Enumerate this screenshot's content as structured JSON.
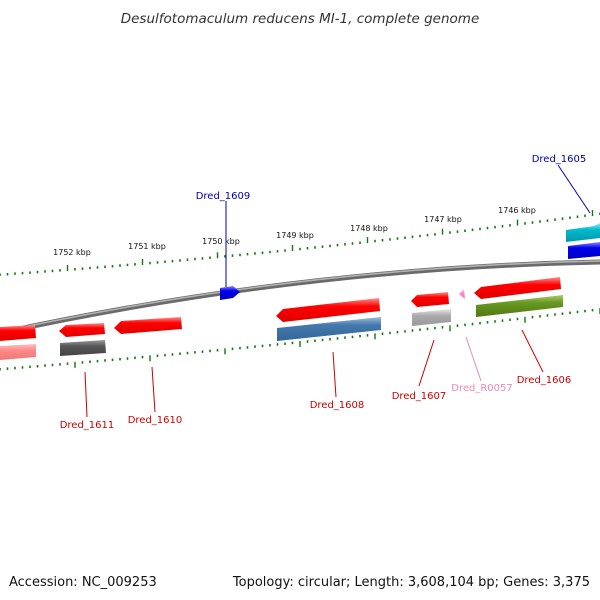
{
  "title": "Desulfotomaculum reducens MI-1, complete genome",
  "footer": {
    "accession": "Accession: NC_009253",
    "summary": "Topology: circular; Length: 3,608,104 bp; Genes: 3,375"
  },
  "kbp_labels": [
    "1752 kbp",
    "1751 kbp",
    "1750 kbp",
    "1749 kbp",
    "1748 kbp",
    "1747 kbp",
    "1746 kbp"
  ],
  "gene_labels": [
    {
      "id": "Dred_1605",
      "color": "#0000aa"
    },
    {
      "id": "Dred_1609",
      "color": "#0000aa"
    },
    {
      "id": "Dred_1611",
      "color": "#cc0000"
    },
    {
      "id": "Dred_1610",
      "color": "#cc0000"
    },
    {
      "id": "Dred_1608",
      "color": "#cc0000"
    },
    {
      "id": "Dred_1607",
      "color": "#cc0000"
    },
    {
      "id": "Dred_R0057",
      "color": "#ee88bb"
    },
    {
      "id": "Dred_1606",
      "color": "#cc0000"
    }
  ],
  "colors": {
    "cds": "#ff0000",
    "cds_light": "#ff8888",
    "rna": "#ff88cc",
    "blue": "#0000ee",
    "cyan": "#00bbcc",
    "steelblue": "#4477aa",
    "olive": "#669922",
    "gray": "#aaaaaa",
    "darkgray": "#555555",
    "tick": "#117711",
    "backbone": "#888888"
  }
}
